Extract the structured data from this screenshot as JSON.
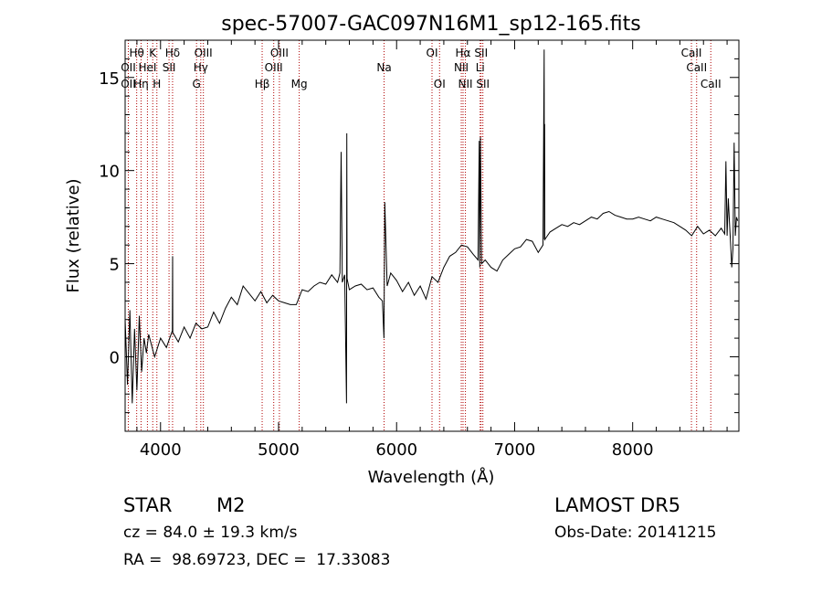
{
  "chart_data": {
    "type": "line",
    "title": "spec-57007-GAC097N16M1_sp12-165.fits",
    "xlabel": "Wavelength (Å)",
    "ylabel": "Flux (relative)",
    "xlim": [
      3700,
      8900
    ],
    "ylim": [
      -4,
      17
    ],
    "xticks": [
      4000,
      5000,
      6000,
      7000,
      8000
    ],
    "yticks": [
      0,
      5,
      10,
      15
    ],
    "grid": false,
    "series": [
      {
        "values_x": [
          3700,
          3720,
          3740,
          3760,
          3780,
          3800,
          3820,
          3840,
          3860,
          3880,
          3900,
          3950,
          4000,
          4050,
          4100,
          4102,
          4104,
          4150,
          4200,
          4250,
          4300,
          4350,
          4400,
          4450,
          4500,
          4550,
          4600,
          4650,
          4700,
          4750,
          4800,
          4850,
          4900,
          4950,
          5000,
          5050,
          5100,
          5150,
          5200,
          5250,
          5300,
          5350,
          5400,
          5450,
          5500,
          5520,
          5530,
          5540,
          5560,
          5576,
          5578,
          5580,
          5600,
          5650,
          5700,
          5750,
          5800,
          5850,
          5880,
          5893,
          5900,
          5920,
          5950,
          6000,
          6050,
          6100,
          6150,
          6200,
          6250,
          6300,
          6350,
          6400,
          6450,
          6500,
          6550,
          6600,
          6650,
          6690,
          6700,
          6705,
          6710,
          6720,
          6750,
          6800,
          6850,
          6900,
          6950,
          7000,
          7050,
          7100,
          7150,
          7200,
          7240,
          7250,
          7252,
          7254,
          7256,
          7300,
          7350,
          7400,
          7450,
          7500,
          7550,
          7600,
          7650,
          7700,
          7750,
          7800,
          7850,
          7900,
          7950,
          8000,
          8050,
          8100,
          8150,
          8200,
          8250,
          8300,
          8350,
          8400,
          8450,
          8500,
          8550,
          8600,
          8650,
          8700,
          8750,
          8780,
          8790,
          8800,
          8810,
          8820,
          8830,
          8840,
          8850,
          8860,
          8870,
          8880,
          8890
        ],
        "values_y": [
          2.0,
          -1.5,
          2.5,
          -2.5,
          1.5,
          -1.8,
          2.2,
          -0.8,
          1.0,
          0.2,
          1.2,
          0.0,
          1.0,
          0.5,
          1.4,
          5.4,
          1.3,
          0.8,
          1.6,
          1.0,
          1.8,
          1.5,
          1.6,
          2.4,
          1.8,
          2.6,
          3.2,
          2.8,
          3.8,
          3.4,
          3.0,
          3.5,
          2.9,
          3.3,
          3.0,
          2.9,
          2.8,
          2.8,
          3.6,
          3.5,
          3.8,
          4.0,
          3.9,
          4.4,
          4.0,
          4.5,
          11.0,
          4.0,
          4.4,
          -2.5,
          12.0,
          4.2,
          3.6,
          3.8,
          3.9,
          3.6,
          3.7,
          3.2,
          3.0,
          1.0,
          8.3,
          3.8,
          4.5,
          4.1,
          3.5,
          4.0,
          3.3,
          3.8,
          3.1,
          4.3,
          4.0,
          4.8,
          5.4,
          5.6,
          6.0,
          5.9,
          5.5,
          5.2,
          11.6,
          4.8,
          11.8,
          5.0,
          5.2,
          4.8,
          4.6,
          5.2,
          5.5,
          5.8,
          5.9,
          6.3,
          6.2,
          5.6,
          6.0,
          16.5,
          6.3,
          12.5,
          6.3,
          6.7,
          6.9,
          7.1,
          7.0,
          7.2,
          7.1,
          7.3,
          7.5,
          7.4,
          7.7,
          7.8,
          7.6,
          7.5,
          7.4,
          7.4,
          7.5,
          7.4,
          7.3,
          7.5,
          7.4,
          7.3,
          7.2,
          7.0,
          6.8,
          6.5,
          7.0,
          6.6,
          6.8,
          6.5,
          6.9,
          6.6,
          10.5,
          6.5,
          8.5,
          7.2,
          6.0,
          4.8,
          5.8,
          11.5,
          6.5,
          7.5,
          7.3
        ]
      }
    ],
    "lines": [
      {
        "label": "OII",
        "x": 3727,
        "row": 1
      },
      {
        "label": "OII",
        "x": 3727,
        "row": 2
      },
      {
        "label": "Hθ",
        "x": 3798,
        "row": 0
      },
      {
        "label": "Hη",
        "x": 3835,
        "row": 2
      },
      {
        "label": "HeI",
        "x": 3889,
        "row": 1
      },
      {
        "label": "K",
        "x": 3934,
        "row": 0
      },
      {
        "label": "H",
        "x": 3969,
        "row": 2
      },
      {
        "label": "Hδ",
        "x": 4102,
        "row": 0
      },
      {
        "label": "SII",
        "x": 4072,
        "row": 1
      },
      {
        "label": "OIII",
        "x": 4363,
        "row": 0
      },
      {
        "label": "Hγ",
        "x": 4341,
        "row": 1
      },
      {
        "label": "G",
        "x": 4305,
        "row": 2
      },
      {
        "label": "Hβ",
        "x": 4861,
        "row": 2
      },
      {
        "label": "OIII",
        "x": 5007,
        "row": 0
      },
      {
        "label": "OIII",
        "x": 4959,
        "row": 1
      },
      {
        "label": "Mg",
        "x": 5175,
        "row": 2
      },
      {
        "label": "Na",
        "x": 5894,
        "row": 1
      },
      {
        "label": "OI",
        "x": 6300,
        "row": 0
      },
      {
        "label": "OI",
        "x": 6364,
        "row": 2
      },
      {
        "label": "Hα",
        "x": 6563,
        "row": 0
      },
      {
        "label": "NII",
        "x": 6548,
        "row": 1
      },
      {
        "label": "NII",
        "x": 6583,
        "row": 2
      },
      {
        "label": "SII",
        "x": 6716,
        "row": 0
      },
      {
        "label": "Li",
        "x": 6708,
        "row": 1
      },
      {
        "label": "SII",
        "x": 6731,
        "row": 2
      },
      {
        "label": "CaII",
        "x": 8498,
        "row": 0
      },
      {
        "label": "CaII",
        "x": 8542,
        "row": 1
      },
      {
        "label": "CaII",
        "x": 8662,
        "row": 2
      }
    ]
  },
  "footer": {
    "object_class": "STAR",
    "subclass": "M2",
    "survey": "LAMOST DR5",
    "cz": "cz = 84.0 ± 19.3 km/s",
    "obs_date": "Obs-Date: 20141215",
    "radec": "RA =  98.69723, DEC =  17.33083"
  },
  "colors": {
    "spectrum": "#000000",
    "line_markers": "#b00000",
    "axes": "#000000",
    "background": "#ffffff"
  }
}
